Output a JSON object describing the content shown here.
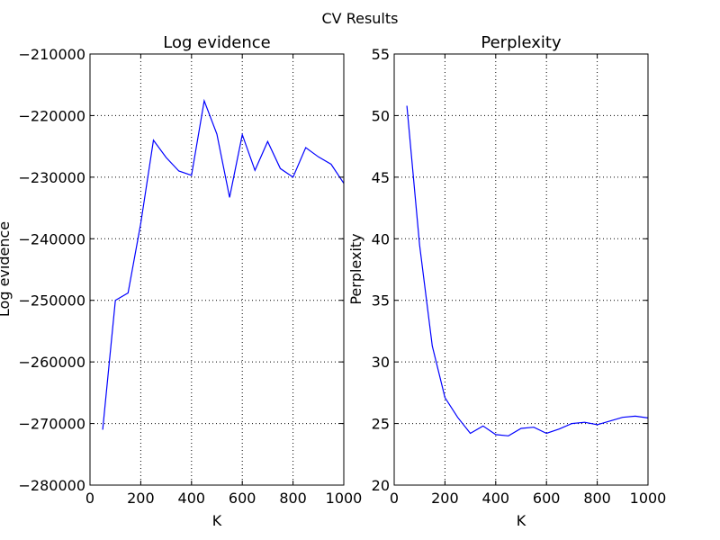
{
  "figure_title": "CV Results",
  "chart_data": [
    {
      "type": "line",
      "title": "Log evidence",
      "xlabel": "K",
      "ylabel": "Log evidence",
      "xlim": [
        0,
        1000
      ],
      "ylim": [
        -280000,
        -210000
      ],
      "grid": true,
      "xticks": [
        0,
        200,
        400,
        600,
        800,
        1000
      ],
      "yticks": [
        -280000,
        -270000,
        -260000,
        -250000,
        -240000,
        -230000,
        -220000,
        -210000
      ],
      "xtick_labels": [
        "0",
        "200",
        "400",
        "600",
        "800",
        "1000"
      ],
      "ytick_labels": [
        "−280000",
        "−270000",
        "−260000",
        "−250000",
        "−240000",
        "−230000",
        "−220000",
        "−210000"
      ],
      "color": "#0000ff",
      "x": [
        50,
        100,
        150,
        200,
        250,
        300,
        350,
        400,
        450,
        500,
        550,
        600,
        650,
        700,
        750,
        800,
        850,
        900,
        950,
        1000
      ],
      "y": [
        -271000,
        -250000,
        -248800,
        -237500,
        -224000,
        -226800,
        -229000,
        -229700,
        -217600,
        -223000,
        -233300,
        -223100,
        -228900,
        -224200,
        -228600,
        -230000,
        -225200,
        -226700,
        -227900,
        -231000
      ]
    },
    {
      "type": "line",
      "title": "Perplexity",
      "xlabel": "K",
      "ylabel": "Perplexity",
      "xlim": [
        0,
        1000
      ],
      "ylim": [
        20,
        55
      ],
      "grid": true,
      "xticks": [
        0,
        200,
        400,
        600,
        800,
        1000
      ],
      "yticks": [
        20,
        25,
        30,
        35,
        40,
        45,
        50,
        55
      ],
      "xtick_labels": [
        "0",
        "200",
        "400",
        "600",
        "800",
        "1000"
      ],
      "ytick_labels": [
        "20",
        "25",
        "30",
        "35",
        "40",
        "45",
        "50",
        "55"
      ],
      "color": "#0000ff",
      "x": [
        50,
        100,
        150,
        200,
        250,
        300,
        350,
        400,
        450,
        500,
        550,
        600,
        650,
        700,
        750,
        800,
        850,
        900,
        950,
        1000
      ],
      "y": [
        50.8,
        39.5,
        31.3,
        27.1,
        25.5,
        24.2,
        24.8,
        24.1,
        24.0,
        24.6,
        24.7,
        24.2,
        24.55,
        25.0,
        25.1,
        24.9,
        25.2,
        25.5,
        25.6,
        25.45
      ]
    }
  ]
}
